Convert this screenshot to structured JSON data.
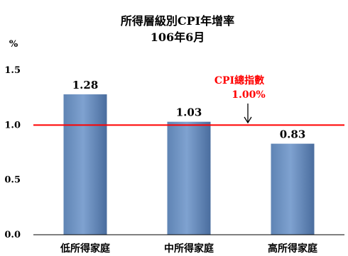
{
  "chart_data": {
    "type": "bar",
    "title": "所得層級別CPI年增率",
    "subtitle": "106年6月",
    "ylabel": "%",
    "categories": [
      "低所得家庭",
      "中所得家庭",
      "高所得家庭"
    ],
    "values": [
      1.28,
      1.03,
      0.83
    ],
    "value_labels": [
      "1.28",
      "1.03",
      "0.83"
    ],
    "ylim": [
      0,
      1.5
    ],
    "yticks": [
      "0.0",
      "0.5",
      "1.0",
      "1.5"
    ],
    "grid": false,
    "legend": "none",
    "bar_color": "#4f81bd",
    "reference_line": {
      "value": 1.0,
      "label": "CPI總指數",
      "value_label": "1.00%",
      "color": "#ff0000"
    }
  }
}
